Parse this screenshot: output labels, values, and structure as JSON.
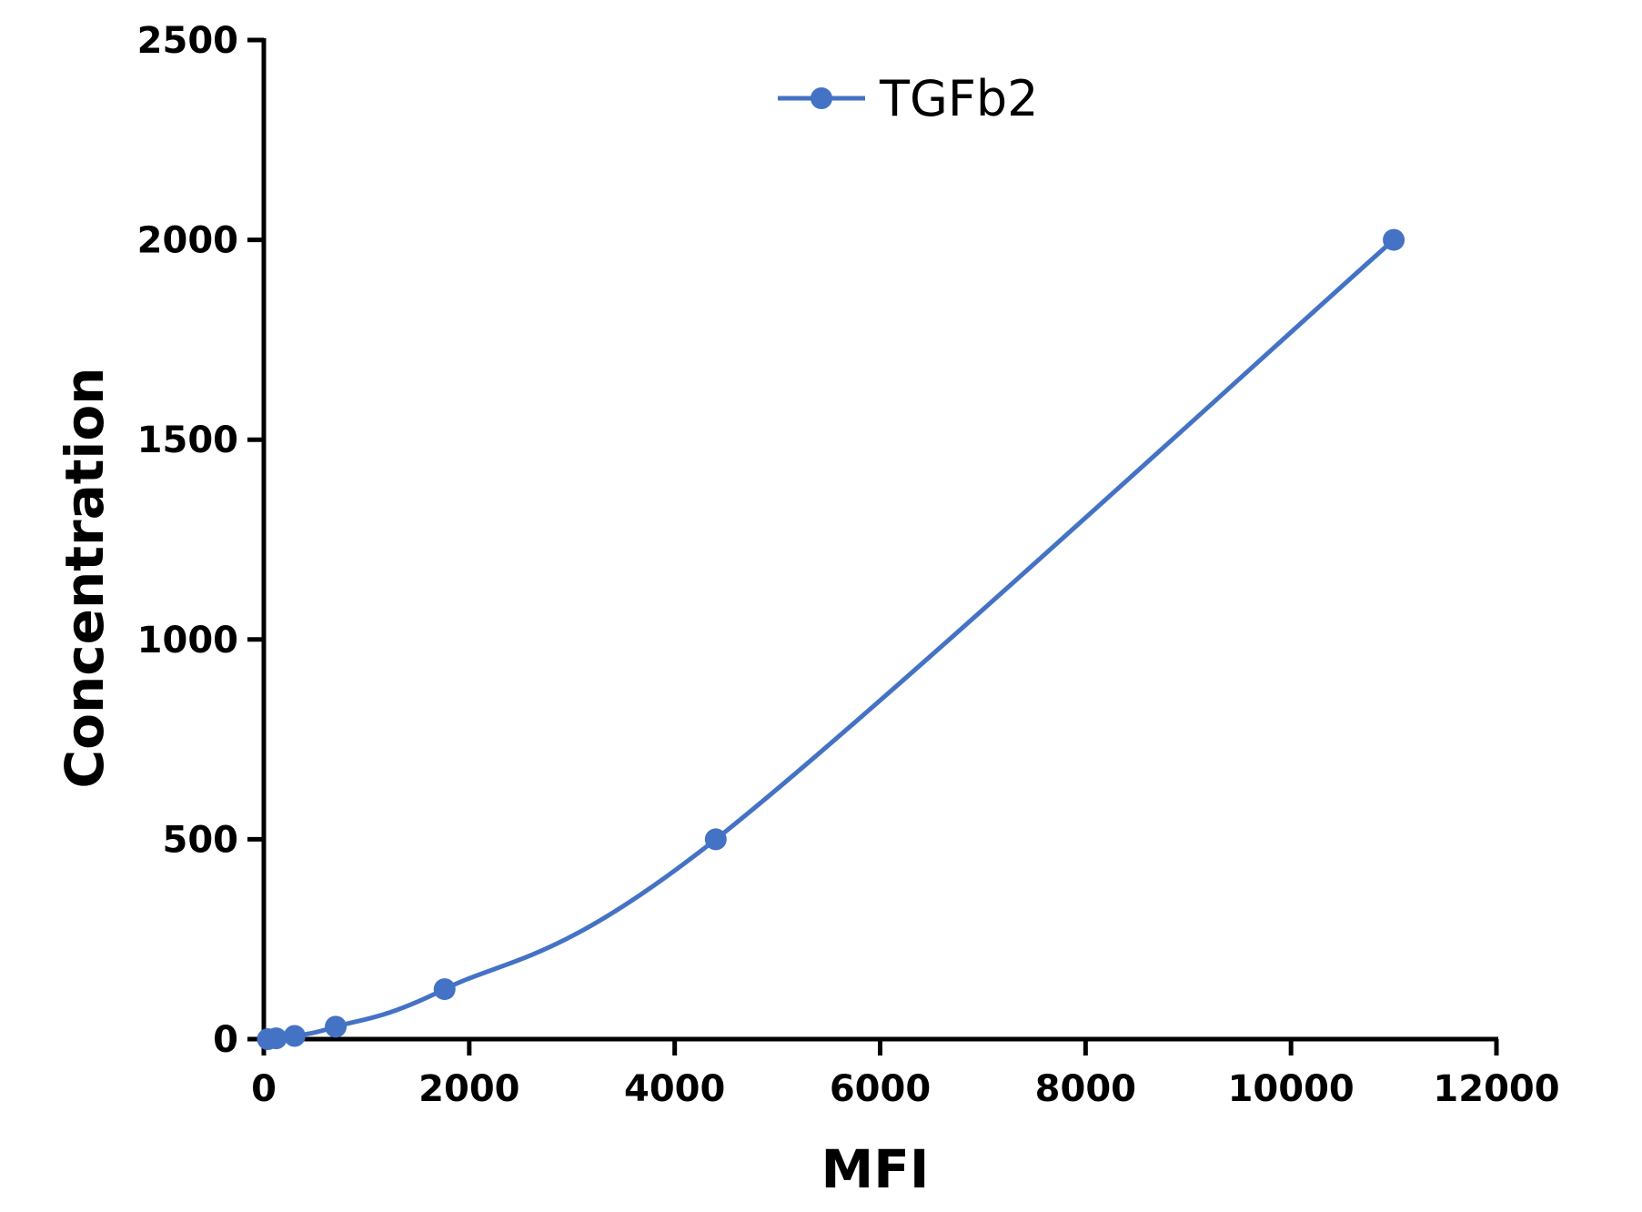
{
  "chart_data": {
    "type": "line",
    "title": "",
    "xlabel": "MFI",
    "ylabel": "Concentration",
    "xlim": [
      0,
      12000
    ],
    "ylim": [
      0,
      2500
    ],
    "x_ticks": [
      0,
      2000,
      4000,
      6000,
      8000,
      10000,
      12000
    ],
    "y_ticks": [
      0,
      500,
      1000,
      1500,
      2000,
      2500
    ],
    "grid": false,
    "legend": {
      "position": "top-center",
      "entries": [
        "TGFb2"
      ]
    },
    "series": [
      {
        "name": "TGFb2",
        "color": "#4472C4",
        "smooth": true,
        "x": [
          40,
          120,
          300,
          700,
          1760,
          4400,
          11000
        ],
        "y": [
          0,
          2,
          8,
          31,
          125,
          500,
          2000
        ]
      }
    ]
  }
}
